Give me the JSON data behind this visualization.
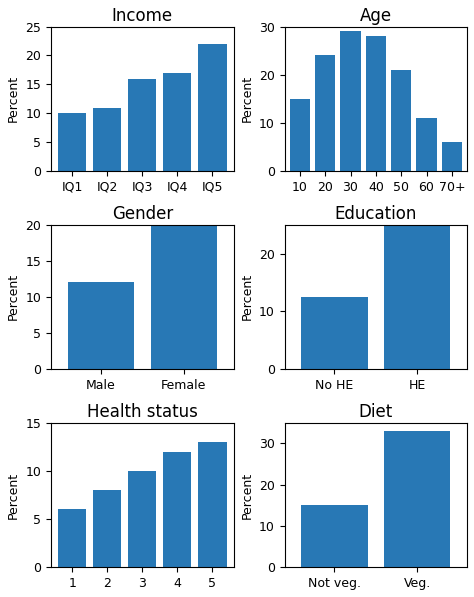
{
  "subplots": [
    {
      "title": "Income",
      "categories": [
        "IQ1",
        "IQ2",
        "IQ3",
        "IQ4",
        "IQ5"
      ],
      "values": [
        10,
        11,
        16,
        17,
        22
      ],
      "ylim": [
        0,
        25
      ],
      "yticks": [
        0,
        5,
        10,
        15,
        20,
        25
      ]
    },
    {
      "title": "Age",
      "categories": [
        "10",
        "20",
        "30",
        "40",
        "50",
        "60",
        "70+"
      ],
      "values": [
        15,
        24,
        29,
        28,
        21,
        11,
        6
      ],
      "ylim": [
        0,
        30
      ],
      "yticks": [
        0,
        10,
        20,
        30
      ]
    },
    {
      "title": "Gender",
      "categories": [
        "Male",
        "Female"
      ],
      "values": [
        12,
        20
      ],
      "ylim": [
        0,
        20
      ],
      "yticks": [
        0,
        5,
        10,
        15,
        20
      ]
    },
    {
      "title": "Education",
      "categories": [
        "No HE",
        "HE"
      ],
      "values": [
        12.5,
        25
      ],
      "ylim": [
        0,
        25
      ],
      "yticks": [
        0,
        10,
        20
      ]
    },
    {
      "title": "Health status",
      "categories": [
        "1",
        "2",
        "3",
        "4",
        "5"
      ],
      "values": [
        6,
        8,
        10,
        12,
        13
      ],
      "ylim": [
        0,
        15
      ],
      "yticks": [
        0,
        5,
        10,
        15
      ]
    },
    {
      "title": "Diet",
      "categories": [
        "Not veg.",
        "Veg."
      ],
      "values": [
        15,
        33
      ],
      "ylim": [
        0,
        35
      ],
      "yticks": [
        0,
        10,
        20,
        30
      ]
    }
  ],
  "bar_color": "#2878b5",
  "ylabel": "Percent",
  "figsize": [
    4.74,
    5.97
  ],
  "dpi": 100,
  "title_fontsize": 12,
  "label_fontsize": 9,
  "tick_fontsize": 9
}
